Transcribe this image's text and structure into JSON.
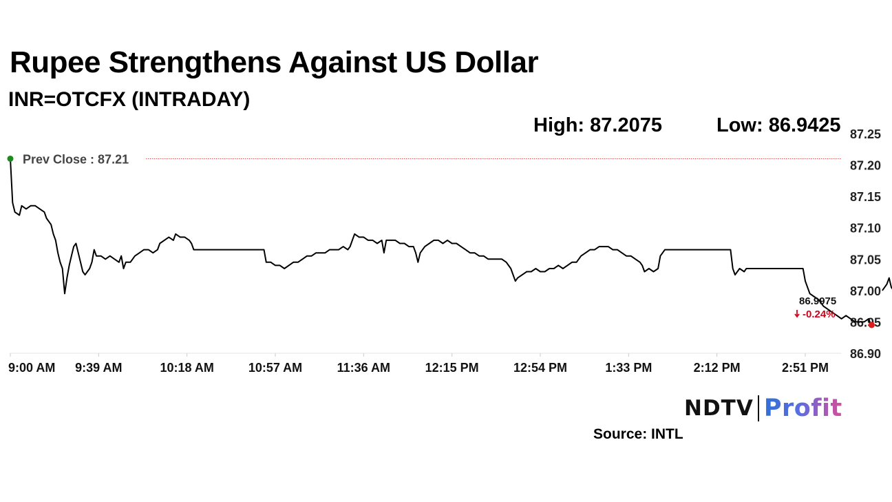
{
  "title": "Rupee Strengthens Against US Dollar",
  "subtitle": "INR=OTCFX (INTRADAY)",
  "stats": {
    "high": "High: 87.2075",
    "low": "Low: 86.9425"
  },
  "logo": {
    "ndtv": "NDTV",
    "profit": "Profit",
    "accent_color": "#d0021b"
  },
  "source": "Source: INTL",
  "colors": {
    "line": "#000000",
    "prev_close_line": "#e05050",
    "prev_close_marker": "#1e8a1e",
    "last_marker": "#2233cc",
    "low_marker": "#e01b1b",
    "negative_change": "#d0021b"
  },
  "chart_data": {
    "type": "line",
    "x_tick_labels": [
      "9:00 AM",
      "9:39 AM",
      "10:18 AM",
      "10:57 AM",
      "11:36 AM",
      "12:15 PM",
      "12:54 PM",
      "1:33 PM",
      "2:12 PM",
      "2:51 PM"
    ],
    "y_tick_labels": [
      "87.25",
      "87.20",
      "87.15",
      "87.10",
      "87.05",
      "87.00",
      "86.95",
      "86.90"
    ],
    "y_ticks": [
      87.25,
      87.2,
      87.15,
      87.1,
      87.05,
      87.0,
      86.95,
      86.9
    ],
    "ylim": [
      86.9,
      87.25
    ],
    "x_range_minutes": [
      0,
      390
    ],
    "grid": false,
    "prev_close": {
      "label": "Prev Close : 87.21",
      "value": 87.21
    },
    "last": {
      "label": "86.9975",
      "change": "-0.24%",
      "value": 86.9975
    },
    "series": [
      {
        "points": [
          [
            0,
            87.21
          ],
          [
            1,
            87.14
          ],
          [
            2,
            87.125
          ],
          [
            4,
            87.12
          ],
          [
            5,
            87.135
          ],
          [
            7,
            87.13
          ],
          [
            9,
            87.135
          ],
          [
            11,
            87.135
          ],
          [
            13,
            87.13
          ],
          [
            15,
            87.125
          ],
          [
            16,
            87.115
          ],
          [
            18,
            87.105
          ],
          [
            19,
            87.09
          ],
          [
            20,
            87.08
          ],
          [
            21,
            87.06
          ],
          [
            22,
            87.045
          ],
          [
            23,
            87.035
          ],
          [
            24,
            86.995
          ],
          [
            25,
            87.02
          ],
          [
            26,
            87.04
          ],
          [
            27,
            87.055
          ],
          [
            28,
            87.07
          ],
          [
            29,
            87.075
          ],
          [
            30,
            87.06
          ],
          [
            31,
            87.045
          ],
          [
            32,
            87.03
          ],
          [
            33,
            87.025
          ],
          [
            34,
            87.03
          ],
          [
            35,
            87.035
          ],
          [
            36,
            87.045
          ],
          [
            37,
            87.065
          ],
          [
            38,
            87.055
          ],
          [
            40,
            87.055
          ],
          [
            42,
            87.05
          ],
          [
            44,
            87.055
          ],
          [
            46,
            87.05
          ],
          [
            48,
            87.045
          ],
          [
            49,
            87.055
          ],
          [
            50,
            87.035
          ],
          [
            51,
            87.045
          ],
          [
            53,
            87.045
          ],
          [
            55,
            87.055
          ],
          [
            57,
            87.06
          ],
          [
            59,
            87.065
          ],
          [
            61,
            87.065
          ],
          [
            63,
            87.06
          ],
          [
            65,
            87.065
          ],
          [
            66,
            87.075
          ],
          [
            68,
            87.08
          ],
          [
            70,
            87.085
          ],
          [
            72,
            87.08
          ],
          [
            73,
            87.09
          ],
          [
            75,
            87.085
          ],
          [
            77,
            87.085
          ],
          [
            79,
            87.08
          ],
          [
            80,
            87.075
          ],
          [
            81,
            87.065
          ],
          [
            112,
            87.065
          ],
          [
            113,
            87.045
          ],
          [
            115,
            87.045
          ],
          [
            117,
            87.04
          ],
          [
            119,
            87.04
          ],
          [
            121,
            87.035
          ],
          [
            123,
            87.04
          ],
          [
            125,
            87.045
          ],
          [
            127,
            87.045
          ],
          [
            129,
            87.05
          ],
          [
            131,
            87.055
          ],
          [
            133,
            87.055
          ],
          [
            135,
            87.06
          ],
          [
            137,
            87.06
          ],
          [
            139,
            87.06
          ],
          [
            141,
            87.065
          ],
          [
            143,
            87.065
          ],
          [
            145,
            87.065
          ],
          [
            147,
            87.07
          ],
          [
            149,
            87.065
          ],
          [
            150,
            87.07
          ],
          [
            151,
            87.08
          ],
          [
            152,
            87.09
          ],
          [
            154,
            87.085
          ],
          [
            156,
            87.085
          ],
          [
            158,
            87.08
          ],
          [
            160,
            87.08
          ],
          [
            162,
            87.075
          ],
          [
            164,
            87.08
          ],
          [
            165,
            87.06
          ],
          [
            166,
            87.08
          ],
          [
            168,
            87.08
          ],
          [
            170,
            87.08
          ],
          [
            172,
            87.075
          ],
          [
            174,
            87.075
          ],
          [
            176,
            87.07
          ],
          [
            178,
            87.07
          ],
          [
            179,
            87.06
          ],
          [
            180,
            87.045
          ],
          [
            181,
            87.06
          ],
          [
            183,
            87.07
          ],
          [
            185,
            87.075
          ],
          [
            187,
            87.08
          ],
          [
            189,
            87.08
          ],
          [
            191,
            87.075
          ],
          [
            193,
            87.08
          ],
          [
            195,
            87.075
          ],
          [
            197,
            87.075
          ],
          [
            199,
            87.07
          ],
          [
            201,
            87.065
          ],
          [
            203,
            87.06
          ],
          [
            205,
            87.06
          ],
          [
            207,
            87.055
          ],
          [
            209,
            87.055
          ],
          [
            211,
            87.05
          ],
          [
            213,
            87.05
          ],
          [
            215,
            87.05
          ],
          [
            217,
            87.05
          ],
          [
            219,
            87.045
          ],
          [
            221,
            87.035
          ],
          [
            222,
            87.025
          ],
          [
            223,
            87.015
          ],
          [
            224,
            87.02
          ],
          [
            226,
            87.025
          ],
          [
            228,
            87.03
          ],
          [
            230,
            87.03
          ],
          [
            232,
            87.035
          ],
          [
            234,
            87.03
          ],
          [
            236,
            87.03
          ],
          [
            238,
            87.035
          ],
          [
            240,
            87.035
          ],
          [
            242,
            87.04
          ],
          [
            244,
            87.035
          ],
          [
            246,
            87.04
          ],
          [
            248,
            87.045
          ],
          [
            250,
            87.045
          ],
          [
            252,
            87.055
          ],
          [
            254,
            87.06
          ],
          [
            256,
            87.065
          ],
          [
            258,
            87.065
          ],
          [
            260,
            87.07
          ],
          [
            262,
            87.07
          ],
          [
            264,
            87.07
          ],
          [
            266,
            87.065
          ],
          [
            268,
            87.065
          ],
          [
            270,
            87.06
          ],
          [
            272,
            87.055
          ],
          [
            274,
            87.055
          ],
          [
            276,
            87.05
          ],
          [
            278,
            87.045
          ],
          [
            279,
            87.04
          ],
          [
            280,
            87.03
          ],
          [
            282,
            87.035
          ],
          [
            284,
            87.03
          ],
          [
            286,
            87.035
          ],
          [
            287,
            87.055
          ],
          [
            288,
            87.06
          ],
          [
            289,
            87.065
          ],
          [
            318,
            87.065
          ],
          [
            319,
            87.035
          ],
          [
            320,
            87.025
          ],
          [
            321,
            87.03
          ],
          [
            322,
            87.035
          ],
          [
            324,
            87.03
          ],
          [
            325,
            87.035
          ],
          [
            350,
            87.035
          ],
          [
            351,
            87.015
          ],
          [
            352,
            87.005
          ],
          [
            353,
            86.995
          ],
          [
            355,
            86.99
          ],
          [
            357,
            86.985
          ],
          [
            359,
            86.975
          ],
          [
            361,
            86.97
          ],
          [
            363,
            86.965
          ],
          [
            365,
            86.96
          ],
          [
            367,
            86.955
          ],
          [
            369,
            86.96
          ],
          [
            371,
            86.955
          ],
          [
            373,
            86.95
          ],
          [
            375,
            86.95
          ],
          [
            377,
            86.95
          ],
          [
            379,
            86.955
          ],
          [
            380,
            86.945
          ]
        ]
      },
      {
        "points": [
          [
            385,
            87.0
          ],
          [
            386,
            87.005
          ],
          [
            387,
            87.01
          ],
          [
            388,
            87.02
          ],
          [
            389,
            87.005
          ],
          [
            390,
            87.0
          ],
          [
            392,
            86.9975
          ]
        ]
      }
    ]
  }
}
